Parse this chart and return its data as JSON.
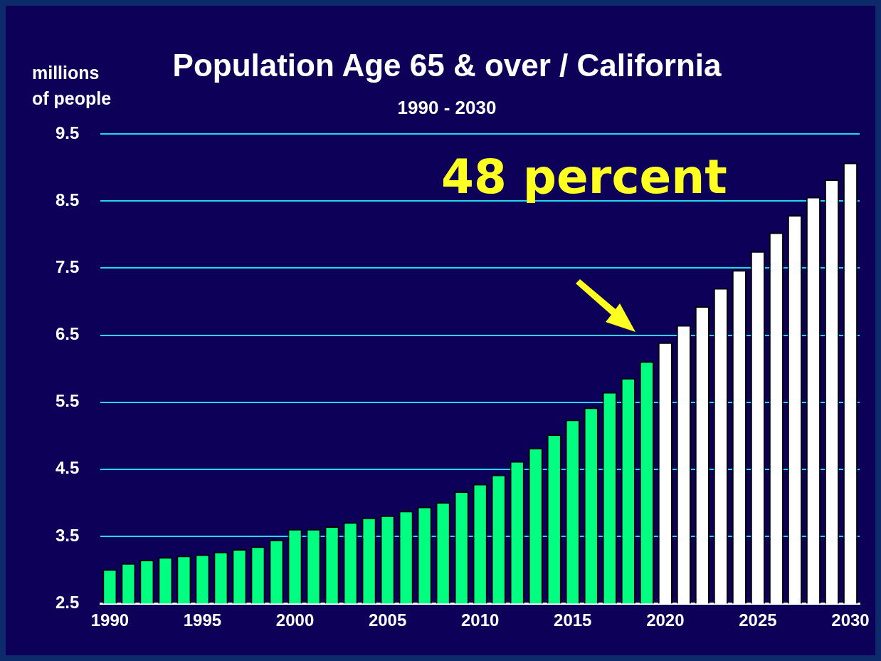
{
  "chart_data": {
    "type": "bar",
    "title": "Population Age 65 & over / California",
    "subtitle": "1990 - 2030",
    "ylabel": "millions of people",
    "categories": [
      "1990",
      null,
      null,
      null,
      null,
      "1995",
      null,
      null,
      null,
      null,
      "2000",
      null,
      null,
      null,
      null,
      "2005",
      null,
      null,
      null,
      null,
      "2010",
      null,
      null,
      null,
      null,
      "2015",
      null,
      null,
      null,
      null,
      "2020",
      null,
      null,
      null,
      null,
      "2025",
      null,
      null,
      null,
      null,
      "2030"
    ],
    "values": [
      3.01,
      3.1,
      3.15,
      3.19,
      3.21,
      3.23,
      3.27,
      3.31,
      3.35,
      3.45,
      3.61,
      3.61,
      3.65,
      3.71,
      3.78,
      3.81,
      3.88,
      3.94,
      4.01,
      4.17,
      4.28,
      4.42,
      4.62,
      4.82,
      5.02,
      5.24,
      5.42,
      5.65,
      5.86,
      6.11,
      6.39,
      6.65,
      6.93,
      7.2,
      7.47,
      7.75,
      8.03,
      8.29,
      8.56,
      8.82,
      9.07
    ],
    "colors": [
      "#00ff80",
      "#00ff80",
      "#00ff80",
      "#00ff80",
      "#00ff80",
      "#00ff80",
      "#00ff80",
      "#00ff80",
      "#00ff80",
      "#00ff80",
      "#00ff80",
      "#00ff80",
      "#00ff80",
      "#00ff80",
      "#00ff80",
      "#00ff80",
      "#00ff80",
      "#00ff80",
      "#00ff80",
      "#00ff80",
      "#00ff80",
      "#00ff80",
      "#00ff80",
      "#00ff80",
      "#00ff80",
      "#00ff80",
      "#00ff80",
      "#00ff80",
      "#00ff80",
      "#00ff80",
      "#ffffff",
      "#ffffff",
      "#ffffff",
      "#ffffff",
      "#ffffff",
      "#ffffff",
      "#ffffff",
      "#ffffff",
      "#ffffff",
      "#ffffff",
      "#ffffff"
    ],
    "ylim": [
      2.5,
      9.5
    ],
    "yticks": [
      2.5,
      3.5,
      4.5,
      5.5,
      6.5,
      7.5,
      8.5,
      9.5
    ],
    "grid": "y",
    "legend": false,
    "annotations": [
      "48 percent"
    ]
  }
}
